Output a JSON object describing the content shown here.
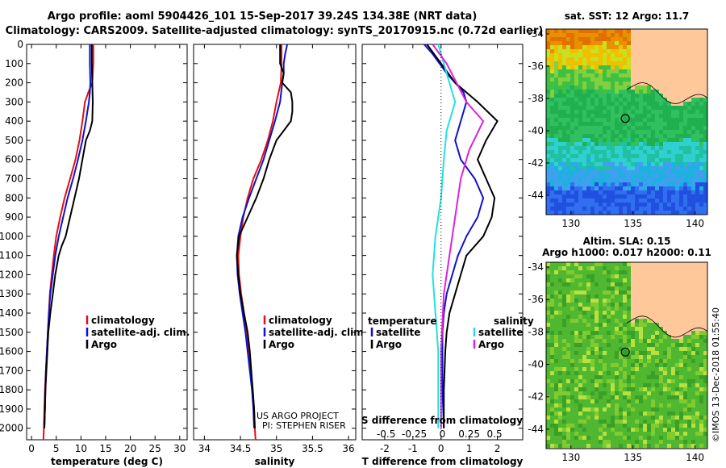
{
  "title_line1": "Argo profile: aoml 5904426_101 15-Sep-2017 39.24S 134.38E (NRT data)",
  "title_line2": "Climatology: CARS2009. Satellite-adjusted climatology: synTS_20170915.nc (0.72d earlier)",
  "credit_project": "US ARGO PROJECT",
  "credit_pi": "PI: STEPHEN RISER",
  "imos_stamp": "©IMOS 13-Dec-2018 01:55:40",
  "colors": {
    "climatology": "#e01010",
    "satellite": "#1010cc",
    "argo": "#000000",
    "sat_salinity": "#22e0e0",
    "argo_salinity": "#dd22dd"
  },
  "chart_data": [
    {
      "id": "temperature",
      "type": "line",
      "xlabel": "temperature (deg C)",
      "ylabel": "",
      "xlim": [
        -1,
        31.5
      ],
      "ylim": [
        2060,
        0
      ],
      "xticks": [
        0,
        5,
        10,
        15,
        20,
        25,
        30
      ],
      "yticks": [
        0,
        100,
        200,
        300,
        400,
        500,
        600,
        700,
        800,
        900,
        1000,
        1100,
        1200,
        1300,
        1400,
        1500,
        1600,
        1700,
        1800,
        1900,
        2000
      ],
      "legend": [
        "climatology",
        "satellite-adj. clim.",
        "Argo"
      ],
      "series": [
        {
          "name": "climatology",
          "color": "#e01010",
          "points": [
            [
              12.5,
              0
            ],
            [
              12.5,
              100
            ],
            [
              12.3,
              200
            ],
            [
              11.5,
              250
            ],
            [
              10.8,
              300
            ],
            [
              10.3,
              400
            ],
            [
              9.7,
              500
            ],
            [
              8.9,
              600
            ],
            [
              7.8,
              700
            ],
            [
              6.7,
              800
            ],
            [
              5.8,
              900
            ],
            [
              5.0,
              1000
            ],
            [
              4.5,
              1100
            ],
            [
              4.1,
              1200
            ],
            [
              3.7,
              1300
            ],
            [
              3.5,
              1400
            ],
            [
              3.3,
              1500
            ],
            [
              3.1,
              1600
            ],
            [
              2.9,
              1700
            ],
            [
              2.7,
              1800
            ],
            [
              2.6,
              1900
            ],
            [
              2.5,
              2000
            ],
            [
              2.4,
              2060
            ]
          ]
        },
        {
          "name": "satellite-adj. clim.",
          "color": "#1010cc",
          "points": [
            [
              11.8,
              0
            ],
            [
              11.8,
              100
            ],
            [
              11.9,
              200
            ],
            [
              11.8,
              250
            ],
            [
              11.6,
              300
            ],
            [
              11.0,
              400
            ],
            [
              10.3,
              500
            ],
            [
              9.4,
              600
            ],
            [
              8.4,
              700
            ],
            [
              7.3,
              800
            ],
            [
              6.4,
              900
            ],
            [
              5.5,
              1000
            ],
            [
              4.8,
              1100
            ],
            [
              4.3,
              1200
            ],
            [
              3.8,
              1300
            ],
            [
              3.5,
              1400
            ],
            [
              3.3,
              1500
            ],
            [
              3.1,
              1600
            ],
            [
              2.9,
              1700
            ],
            [
              2.8,
              1800
            ],
            [
              2.7,
              1900
            ],
            [
              2.6,
              2000
            ]
          ]
        },
        {
          "name": "Argo",
          "color": "#000000",
          "points": [
            [
              12.2,
              0
            ],
            [
              12.2,
              100
            ],
            [
              12.3,
              200
            ],
            [
              12.4,
              300
            ],
            [
              12.3,
              400
            ],
            [
              11.8,
              450
            ],
            [
              11.0,
              500
            ],
            [
              10.3,
              600
            ],
            [
              9.6,
              700
            ],
            [
              8.7,
              800
            ],
            [
              7.8,
              900
            ],
            [
              6.9,
              1000
            ],
            [
              6.1,
              1050
            ],
            [
              5.5,
              1100
            ],
            [
              4.8,
              1200
            ],
            [
              4.3,
              1300
            ],
            [
              3.8,
              1400
            ],
            [
              3.4,
              1500
            ],
            [
              3.2,
              1600
            ],
            [
              3.0,
              1700
            ],
            [
              2.8,
              1800
            ],
            [
              2.7,
              1900
            ],
            [
              2.6,
              2000
            ]
          ]
        }
      ]
    },
    {
      "id": "salinity",
      "type": "line",
      "xlabel": "salinity",
      "xlim": [
        33.85,
        36.1
      ],
      "ylim": [
        2060,
        0
      ],
      "xticks": [
        34,
        34.5,
        35,
        35.5,
        36
      ],
      "legend": [
        "climatology",
        "satellite-adj. clim.",
        "Argo"
      ],
      "series": [
        {
          "name": "climatology",
          "color": "#e01010",
          "points": [
            [
              35.07,
              0
            ],
            [
              35.07,
              100
            ],
            [
              35.06,
              200
            ],
            [
              35.0,
              300
            ],
            [
              34.95,
              400
            ],
            [
              34.88,
              500
            ],
            [
              34.79,
              600
            ],
            [
              34.68,
              700
            ],
            [
              34.6,
              800
            ],
            [
              34.54,
              900
            ],
            [
              34.5,
              1000
            ],
            [
              34.47,
              1100
            ],
            [
              34.48,
              1200
            ],
            [
              34.51,
              1300
            ],
            [
              34.55,
              1400
            ],
            [
              34.58,
              1500
            ],
            [
              34.61,
              1600
            ],
            [
              34.64,
              1700
            ],
            [
              34.67,
              1800
            ],
            [
              34.69,
              1900
            ],
            [
              34.7,
              2000
            ],
            [
              34.71,
              2060
            ]
          ]
        },
        {
          "name": "satellite-adj. clim.",
          "color": "#1010cc",
          "points": [
            [
              35.15,
              0
            ],
            [
              35.12,
              50
            ],
            [
              35.1,
              100
            ],
            [
              35.1,
              150
            ],
            [
              35.08,
              200
            ],
            [
              35.05,
              300
            ],
            [
              34.98,
              400
            ],
            [
              34.9,
              500
            ],
            [
              34.82,
              600
            ],
            [
              34.72,
              700
            ],
            [
              34.62,
              800
            ],
            [
              34.53,
              900
            ],
            [
              34.47,
              1000
            ],
            [
              34.45,
              1100
            ],
            [
              34.46,
              1200
            ],
            [
              34.49,
              1300
            ],
            [
              34.53,
              1400
            ],
            [
              34.57,
              1500
            ],
            [
              34.6,
              1600
            ],
            [
              34.63,
              1700
            ],
            [
              34.66,
              1800
            ],
            [
              34.68,
              1900
            ],
            [
              34.69,
              2000
            ]
          ]
        },
        {
          "name": "Argo",
          "color": "#000000",
          "points": [
            [
              35.05,
              0
            ],
            [
              35.05,
              100
            ],
            [
              35.1,
              150
            ],
            [
              35.08,
              200
            ],
            [
              35.2,
              250
            ],
            [
              35.22,
              300
            ],
            [
              35.22,
              350
            ],
            [
              35.2,
              400
            ],
            [
              35.1,
              450
            ],
            [
              35.0,
              500
            ],
            [
              34.9,
              600
            ],
            [
              34.82,
              700
            ],
            [
              34.72,
              800
            ],
            [
              34.6,
              900
            ],
            [
              34.48,
              1000
            ],
            [
              34.45,
              1100
            ],
            [
              34.47,
              1200
            ],
            [
              34.5,
              1300
            ],
            [
              34.55,
              1400
            ],
            [
              34.6,
              1500
            ],
            [
              34.63,
              1600
            ],
            [
              34.65,
              1700
            ],
            [
              34.67,
              1800
            ],
            [
              34.69,
              1900
            ],
            [
              34.7,
              2000
            ]
          ]
        }
      ]
    },
    {
      "id": "differences",
      "type": "line",
      "xlabel": "T difference from climatology",
      "xlabel2": "S difference from climatology",
      "xlim": [
        -2.8,
        2.9
      ],
      "ylim": [
        2060,
        0
      ],
      "xticks": [
        -2,
        -1,
        0,
        1,
        2
      ],
      "xticks2": [
        "-0.5",
        "-0.25",
        "0",
        "0.25",
        "0.5"
      ],
      "legend_temperature_title": "temperature",
      "legend_salinity_title": "salinity",
      "legend_temperature": [
        "satellite",
        "Argo"
      ],
      "legend_salinity": [
        "satellite",
        "Argo"
      ],
      "series": [
        {
          "name": "temperature satellite",
          "color": "#1010cc",
          "points": [
            [
              -0.6,
              0
            ],
            [
              -0.3,
              50
            ],
            [
              0.2,
              150
            ],
            [
              0.8,
              250
            ],
            [
              0.9,
              300
            ],
            [
              0.7,
              400
            ],
            [
              0.5,
              500
            ],
            [
              0.7,
              600
            ],
            [
              1.2,
              700
            ],
            [
              1.5,
              800
            ],
            [
              1.3,
              900
            ],
            [
              0.9,
              1000
            ],
            [
              0.6,
              1100
            ],
            [
              0.4,
              1200
            ],
            [
              0.2,
              1300
            ],
            [
              0.1,
              1400
            ],
            [
              0.05,
              1500
            ],
            [
              0.05,
              1600
            ],
            [
              0.05,
              1800
            ],
            [
              0.1,
              2000
            ]
          ]
        },
        {
          "name": "temperature Argo",
          "color": "#000000",
          "points": [
            [
              -0.5,
              0
            ],
            [
              0.0,
              100
            ],
            [
              0.5,
              200
            ],
            [
              1.3,
              300
            ],
            [
              2.0,
              400
            ],
            [
              1.6,
              500
            ],
            [
              1.3,
              600
            ],
            [
              1.6,
              700
            ],
            [
              1.9,
              800
            ],
            [
              1.8,
              900
            ],
            [
              1.5,
              1000
            ],
            [
              0.9,
              1100
            ],
            [
              0.7,
              1200
            ],
            [
              0.5,
              1300
            ],
            [
              0.3,
              1400
            ],
            [
              0.2,
              1500
            ],
            [
              0.15,
              1600
            ],
            [
              0.1,
              1800
            ],
            [
              0.1,
              2000
            ]
          ]
        },
        {
          "name": "salinity satellite",
          "color": "#22e0e0",
          "points": [
            [
              -0.1,
              0
            ],
            [
              0.1,
              100
            ],
            [
              0.5,
              300
            ],
            [
              0.2,
              450
            ],
            [
              0.1,
              600
            ],
            [
              0.0,
              800
            ],
            [
              -0.2,
              1000
            ],
            [
              -0.3,
              1200
            ],
            [
              -0.2,
              1400
            ],
            [
              -0.1,
              1600
            ],
            [
              -0.1,
              2000
            ]
          ]
        },
        {
          "name": "salinity Argo",
          "color": "#dd22dd",
          "points": [
            [
              -0.3,
              0
            ],
            [
              0.2,
              100
            ],
            [
              0.9,
              300
            ],
            [
              1.5,
              400
            ],
            [
              1.0,
              550
            ],
            [
              0.7,
              700
            ],
            [
              0.5,
              900
            ],
            [
              0.3,
              1100
            ],
            [
              0.1,
              1300
            ],
            [
              0.0,
              1600
            ],
            [
              0.0,
              2000
            ]
          ]
        }
      ]
    },
    {
      "id": "sst-map",
      "type": "heatmap",
      "title": "sat. SST: 12 Argo: 11.7",
      "xlim": [
        128,
        141
      ],
      "ylim": [
        -45.2,
        -33.7
      ],
      "xticks": [
        130,
        135,
        140
      ],
      "yticks": [
        -34,
        -36,
        -38,
        -40,
        -42,
        -44
      ],
      "marker": {
        "lon": 134.38,
        "lat": -39.24
      }
    },
    {
      "id": "sla-map",
      "type": "heatmap",
      "title": "Altim. SLA: 0.15",
      "subtitle": "Argo h1000: 0.017 h2000: 0.11",
      "xlim": [
        128,
        141
      ],
      "ylim": [
        -45.2,
        -33.7
      ],
      "xticks": [
        130,
        135,
        140
      ],
      "yticks": [
        -34,
        -36,
        -38,
        -40,
        -42,
        -44
      ],
      "marker": {
        "lon": 134.38,
        "lat": -39.24
      }
    }
  ]
}
